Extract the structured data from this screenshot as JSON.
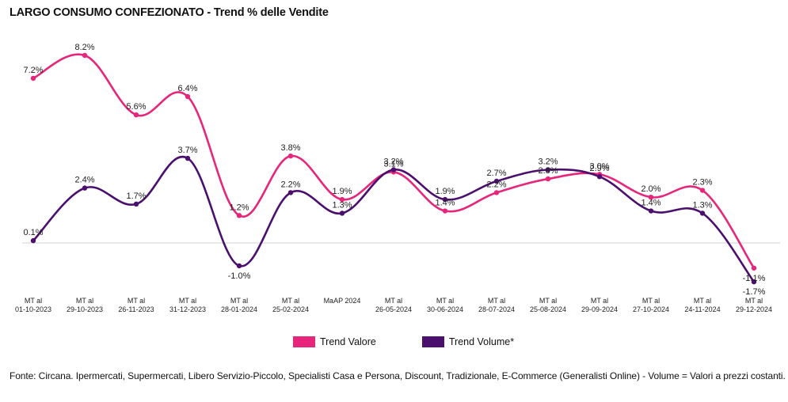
{
  "title": "LARGO CONSUMO CONFEZIONATO - Trend % delle Vendite",
  "source": "Fonte: Circana. Ipermercati, Supermercati, Libero Servizio-Piccolo, Specialisti Casa e Persona, Discount, Tradizionale, E-Commerce (Generalisti Online) - Volume = Valori a prezzi costanti.",
  "chart_data": {
    "type": "line",
    "title": "LARGO CONSUMO CONFEZIONATO - Trend % delle Vendite",
    "x": [
      [
        "MT al",
        "01-10-2023"
      ],
      [
        "MT al",
        "29-10-2023"
      ],
      [
        "MT al",
        "26-11-2023"
      ],
      [
        "MT al",
        "31-12-2023"
      ],
      [
        "MT al",
        "28-01-2024"
      ],
      [
        "MT al",
        "25-02-2024"
      ],
      [
        "MaAP 2024"
      ],
      [
        "MT al",
        "26-05-2024"
      ],
      [
        "MT al",
        "30-06-2024"
      ],
      [
        "MT al",
        "28-07-2024"
      ],
      [
        "MT al",
        "25-08-2024"
      ],
      [
        "MT al",
        "29-09-2024"
      ],
      [
        "MT al",
        "27-10-2024"
      ],
      [
        "MT al",
        "24-11-2024"
      ],
      [
        "MT al",
        "29-12-2024"
      ]
    ],
    "series": [
      {
        "name": "Trend Valore",
        "color": "#e6267a",
        "values": [
          7.2,
          8.2,
          5.6,
          6.4,
          1.2,
          3.8,
          1.9,
          3.1,
          1.4,
          2.2,
          2.8,
          3.0,
          2.0,
          2.3,
          -1.1
        ],
        "labels": [
          "7.2%",
          "8.2%",
          "5.6%",
          "6.4%",
          "1.2%",
          "3.8%",
          "1.9%",
          "3.1%",
          "1.4%",
          "2.2%",
          "2.8%",
          "3.0%",
          "2.0%",
          "2.3%",
          "-1.1%"
        ]
      },
      {
        "name": "Trend Volume*",
        "color": "#4b0f6e",
        "values": [
          0.1,
          2.4,
          1.7,
          3.7,
          -1.0,
          2.2,
          1.3,
          3.2,
          1.9,
          2.7,
          3.2,
          2.9,
          1.4,
          1.3,
          -1.7
        ],
        "labels": [
          "0.1%",
          "2.4%",
          "1.7%",
          "3.7%",
          "-1.0%",
          "2.2%",
          "1.3%",
          "3.2%",
          "1.9%",
          "2.7%",
          "3.2%",
          "2.9%",
          "1.4%",
          "1.3%",
          "-1.7%"
        ]
      }
    ],
    "ylim": [
      -2.5,
      9.5
    ],
    "grid": false,
    "zero_line": true,
    "legend": "bottom-center"
  }
}
